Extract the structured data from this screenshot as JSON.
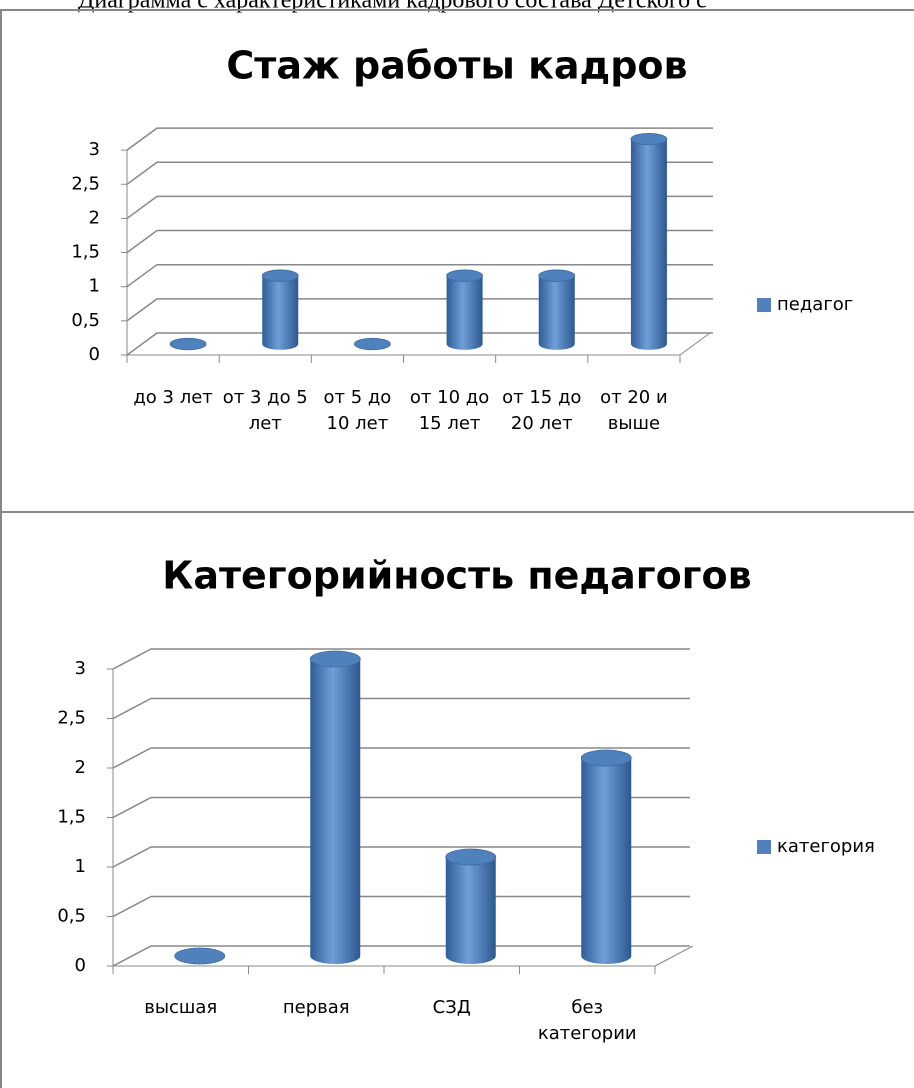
{
  "header_text": "Диаграмма с характеристиками кадрового состава Детского с",
  "chart_data": [
    {
      "type": "bar",
      "title": "Стаж работы кадров",
      "categories": [
        "до 3 лет",
        "от 3 до 5 лет",
        "от 5 до 10 лет",
        "от 10 до 15 лет",
        "от 15 до 20 лет",
        "от 20 и выше"
      ],
      "series": [
        {
          "name": "педагог",
          "color": "#4f81bd",
          "values": [
            0,
            1,
            0,
            1,
            1,
            3
          ]
        }
      ],
      "ylim": [
        0,
        3
      ],
      "yticks": [
        0,
        {
          "value": 0.5,
          "label": "0,5"
        },
        1,
        {
          "value": 1.5,
          "label": "1,5"
        },
        2,
        {
          "value": 2.5,
          "label": "2,5"
        },
        3
      ],
      "grid": true,
      "legend": "right"
    },
    {
      "type": "bar",
      "title": "Категорийность педагогов",
      "categories": [
        "высшая",
        "первая",
        "СЗД",
        "без категории"
      ],
      "series": [
        {
          "name": "категория",
          "color": "#4f81bd",
          "values": [
            0,
            3,
            1,
            2
          ]
        }
      ],
      "ylim": [
        0,
        3
      ],
      "yticks": [
        0,
        {
          "value": 0.5,
          "label": "0,5"
        },
        1,
        {
          "value": 1.5,
          "label": "1,5"
        },
        2,
        {
          "value": 2.5,
          "label": "2,5"
        },
        3
      ],
      "grid": true,
      "legend": "right"
    }
  ]
}
